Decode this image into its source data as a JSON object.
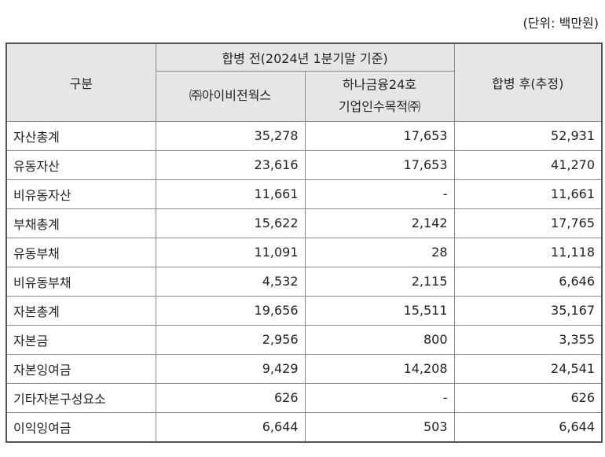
{
  "unit_note": "(단위: 백만원)",
  "header": {
    "category": "구분",
    "before_group": "합병 전(2024년 1분기말 기준)",
    "col_a": "㈜아이비전웍스",
    "col_b_line1": "하나금융24호",
    "col_b_line2": "기업인수목적㈜",
    "after": "합병 후(추정)"
  },
  "rows": [
    {
      "label": "자산총계",
      "a": "35,278",
      "b": "17,653",
      "c": "52,931"
    },
    {
      "label": "유동자산",
      "a": "23,616",
      "b": "17,653",
      "c": "41,270"
    },
    {
      "label": "비유동자산",
      "a": "11,661",
      "b": "-",
      "c": "11,661"
    },
    {
      "label": "부채총계",
      "a": "15,622",
      "b": "2,142",
      "c": "17,765"
    },
    {
      "label": "유동부채",
      "a": "11,091",
      "b": "28",
      "c": "11,118"
    },
    {
      "label": "비유동부채",
      "a": "4,532",
      "b": "2,115",
      "c": "6,646"
    },
    {
      "label": "자본총계",
      "a": "19,656",
      "b": "15,511",
      "c": "35,167"
    },
    {
      "label": "자본금",
      "a": "2,956",
      "b": "800",
      "c": "3,355"
    },
    {
      "label": "자본잉여금",
      "a": "9,429",
      "b": "14,208",
      "c": "24,541"
    },
    {
      "label": "기타자본구성요소",
      "a": "626",
      "b": "-",
      "c": "626"
    },
    {
      "label": "이익잉여금",
      "a": "6,644",
      "b": "503",
      "c": "6,644"
    }
  ]
}
